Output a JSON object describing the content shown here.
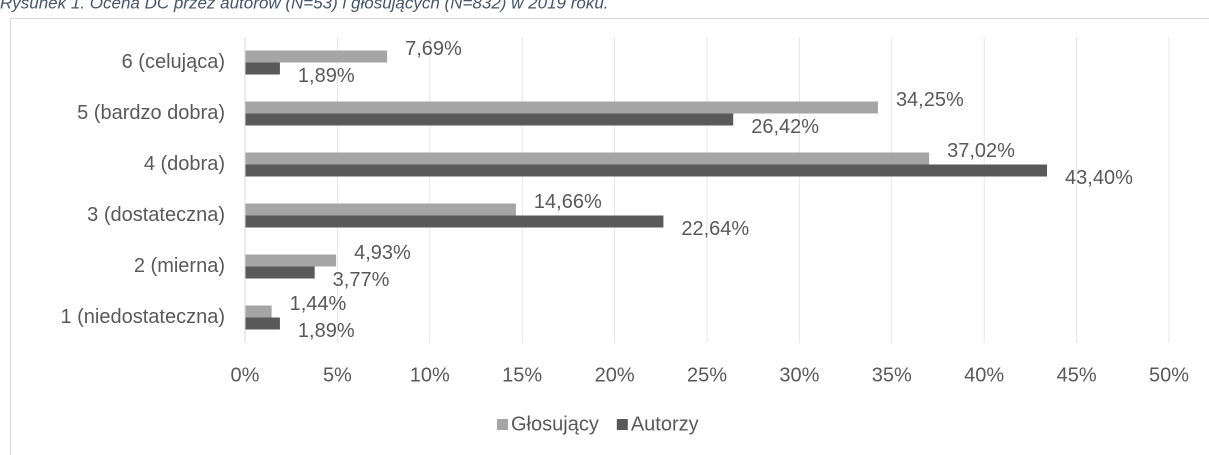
{
  "chart_data": {
    "type": "hbar",
    "title": "Rysunek 1. Ocena DC przez autorów (N=53) i głosujących (N=832) w 2019 roku.",
    "categories": [
      "6 (celująca)",
      "5 (bardzo dobra)",
      "4 (dobra)",
      "3 (dostateczna)",
      "2 (mierna)",
      "1 (niedostateczna)"
    ],
    "series": [
      {
        "name": "Głosujący",
        "color": "#a5a5a5",
        "values": [
          7.69,
          34.25,
          37.02,
          14.66,
          4.93,
          1.44
        ],
        "value_labels": [
          "7,69%",
          "34,25%",
          "37,02%",
          "14,66%",
          "4,93%",
          "1,44%"
        ]
      },
      {
        "name": "Autorzy",
        "color": "#595959",
        "values": [
          1.89,
          26.42,
          43.4,
          22.64,
          3.77,
          1.89
        ],
        "value_labels": [
          "1,89%",
          "26,42%",
          "43,40%",
          "22,64%",
          "3,77%",
          "1,89%"
        ]
      }
    ],
    "xlim": [
      0,
      50
    ],
    "xticks": [
      {
        "value": 0,
        "label": "0%"
      },
      {
        "value": 5,
        "label": "5%"
      },
      {
        "value": 10,
        "label": "10%"
      },
      {
        "value": 15,
        "label": "15%"
      },
      {
        "value": 20,
        "label": "20%"
      },
      {
        "value": 25,
        "label": "25%"
      },
      {
        "value": 30,
        "label": "30%"
      },
      {
        "value": 35,
        "label": "35%"
      },
      {
        "value": 40,
        "label": "40%"
      },
      {
        "value": 45,
        "label": "45%"
      },
      {
        "value": 50,
        "label": "50%"
      }
    ],
    "grid": true,
    "legend": "bottom"
  }
}
